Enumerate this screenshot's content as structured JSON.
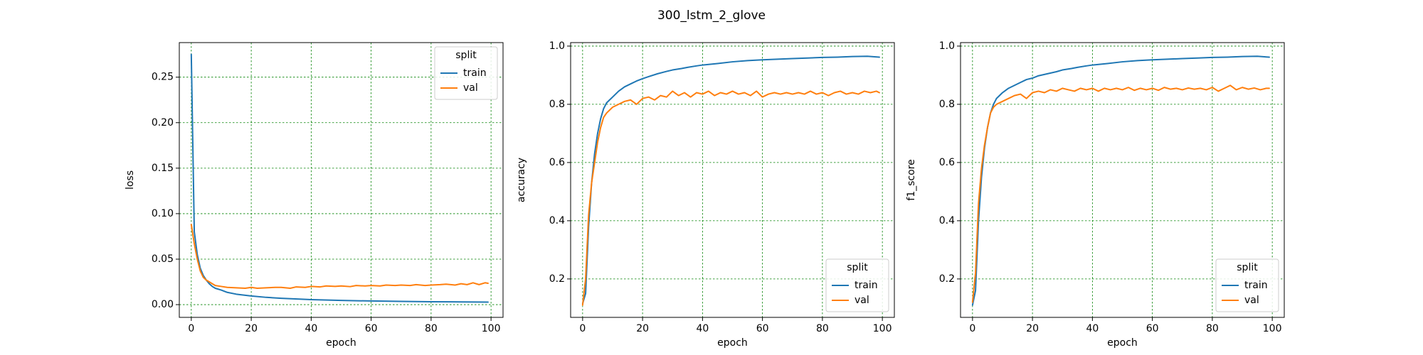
{
  "figure": {
    "title": "300_lstm_2_glove"
  },
  "colors": {
    "train": "#1f77b4",
    "val": "#ff7f0e",
    "grid": "#008000"
  },
  "chart_data": [
    {
      "type": "line",
      "xlabel": "epoch",
      "ylabel": "loss",
      "xlim": [
        -4,
        104
      ],
      "ylim": [
        -0.014,
        0.288
      ],
      "xticks": [
        0,
        20,
        40,
        60,
        80,
        100
      ],
      "yticks": [
        0.0,
        0.05,
        0.1,
        0.15,
        0.2,
        0.25
      ],
      "ytick_labels": [
        "0.00",
        "0.05",
        "0.10",
        "0.15",
        "0.20",
        "0.25"
      ],
      "grid": true,
      "legend": {
        "title": "split",
        "placement": "top-right"
      },
      "series": [
        {
          "name": "train",
          "color": "#1f77b4",
          "points": [
            [
              0,
              0.275
            ],
            [
              1,
              0.08
            ],
            [
              2,
              0.055
            ],
            [
              3,
              0.04
            ],
            [
              4,
              0.032
            ],
            [
              5,
              0.027
            ],
            [
              6,
              0.023
            ],
            [
              7,
              0.02
            ],
            [
              8,
              0.018
            ],
            [
              10,
              0.016
            ],
            [
              12,
              0.0135
            ],
            [
              15,
              0.0115
            ],
            [
              20,
              0.0095
            ],
            [
              25,
              0.008
            ],
            [
              30,
              0.007
            ],
            [
              40,
              0.0055
            ],
            [
              50,
              0.0046
            ],
            [
              60,
              0.004
            ],
            [
              70,
              0.0036
            ],
            [
              80,
              0.0032
            ],
            [
              90,
              0.003
            ],
            [
              99,
              0.0028
            ]
          ]
        },
        {
          "name": "val",
          "color": "#ff7f0e",
          "points": [
            [
              0,
              0.088
            ],
            [
              1,
              0.067
            ],
            [
              2,
              0.05
            ],
            [
              3,
              0.037
            ],
            [
              4,
              0.03
            ],
            [
              5,
              0.027
            ],
            [
              6,
              0.025
            ],
            [
              7,
              0.023
            ],
            [
              8,
              0.021
            ],
            [
              10,
              0.02
            ],
            [
              12,
              0.019
            ],
            [
              15,
              0.0185
            ],
            [
              18,
              0.018
            ],
            [
              20,
              0.019
            ],
            [
              22,
              0.018
            ],
            [
              25,
              0.0185
            ],
            [
              28,
              0.019
            ],
            [
              30,
              0.019
            ],
            [
              33,
              0.018
            ],
            [
              35,
              0.0195
            ],
            [
              38,
              0.019
            ],
            [
              40,
              0.02
            ],
            [
              43,
              0.0195
            ],
            [
              45,
              0.0205
            ],
            [
              48,
              0.02
            ],
            [
              50,
              0.0205
            ],
            [
              53,
              0.0198
            ],
            [
              55,
              0.021
            ],
            [
              58,
              0.0205
            ],
            [
              60,
              0.021
            ],
            [
              63,
              0.0205
            ],
            [
              65,
              0.0215
            ],
            [
              68,
              0.021
            ],
            [
              70,
              0.0215
            ],
            [
              73,
              0.021
            ],
            [
              75,
              0.022
            ],
            [
              78,
              0.021
            ],
            [
              80,
              0.0215
            ],
            [
              83,
              0.022
            ],
            [
              85,
              0.0225
            ],
            [
              88,
              0.0215
            ],
            [
              90,
              0.023
            ],
            [
              92,
              0.022
            ],
            [
              94,
              0.024
            ],
            [
              96,
              0.022
            ],
            [
              98,
              0.024
            ],
            [
              99,
              0.0235
            ]
          ]
        }
      ]
    },
    {
      "type": "line",
      "xlabel": "epoch",
      "ylabel": "accuracy",
      "xlim": [
        -4,
        104
      ],
      "ylim": [
        0.068,
        1.012
      ],
      "xticks": [
        0,
        20,
        40,
        60,
        80,
        100
      ],
      "yticks": [
        0.2,
        0.4,
        0.6,
        0.8,
        1.0
      ],
      "ytick_labels": [
        "0.2",
        "0.4",
        "0.6",
        "0.8",
        "1.0"
      ],
      "grid": true,
      "legend": {
        "title": "split",
        "placement": "bottom-right"
      },
      "series": [
        {
          "name": "train",
          "color": "#1f77b4",
          "points": [
            [
              0,
              0.115
            ],
            [
              1,
              0.15
            ],
            [
              2,
              0.38
            ],
            [
              3,
              0.53
            ],
            [
              4,
              0.63
            ],
            [
              5,
              0.7
            ],
            [
              6,
              0.75
            ],
            [
              7,
              0.785
            ],
            [
              8,
              0.805
            ],
            [
              9,
              0.815
            ],
            [
              10,
              0.825
            ],
            [
              12,
              0.845
            ],
            [
              14,
              0.86
            ],
            [
              16,
              0.87
            ],
            [
              18,
              0.88
            ],
            [
              20,
              0.888
            ],
            [
              22,
              0.895
            ],
            [
              25,
              0.905
            ],
            [
              28,
              0.913
            ],
            [
              30,
              0.918
            ],
            [
              33,
              0.923
            ],
            [
              35,
              0.927
            ],
            [
              38,
              0.932
            ],
            [
              40,
              0.935
            ],
            [
              45,
              0.94
            ],
            [
              50,
              0.946
            ],
            [
              55,
              0.95
            ],
            [
              60,
              0.953
            ],
            [
              65,
              0.955
            ],
            [
              70,
              0.957
            ],
            [
              75,
              0.959
            ],
            [
              80,
              0.961
            ],
            [
              85,
              0.962
            ],
            [
              90,
              0.964
            ],
            [
              95,
              0.965
            ],
            [
              99,
              0.962
            ]
          ]
        },
        {
          "name": "val",
          "color": "#ff7f0e",
          "points": [
            [
              0,
              0.11
            ],
            [
              1,
              0.2
            ],
            [
              2,
              0.42
            ],
            [
              3,
              0.53
            ],
            [
              4,
              0.6
            ],
            [
              5,
              0.67
            ],
            [
              6,
              0.72
            ],
            [
              7,
              0.755
            ],
            [
              8,
              0.77
            ],
            [
              10,
              0.79
            ],
            [
              12,
              0.8
            ],
            [
              14,
              0.81
            ],
            [
              16,
              0.815
            ],
            [
              18,
              0.8
            ],
            [
              20,
              0.82
            ],
            [
              22,
              0.825
            ],
            [
              24,
              0.815
            ],
            [
              26,
              0.83
            ],
            [
              28,
              0.825
            ],
            [
              30,
              0.845
            ],
            [
              32,
              0.83
            ],
            [
              34,
              0.84
            ],
            [
              36,
              0.825
            ],
            [
              38,
              0.84
            ],
            [
              40,
              0.835
            ],
            [
              42,
              0.845
            ],
            [
              44,
              0.83
            ],
            [
              46,
              0.84
            ],
            [
              48,
              0.835
            ],
            [
              50,
              0.845
            ],
            [
              52,
              0.835
            ],
            [
              54,
              0.84
            ],
            [
              56,
              0.83
            ],
            [
              58,
              0.845
            ],
            [
              60,
              0.825
            ],
            [
              62,
              0.835
            ],
            [
              64,
              0.84
            ],
            [
              66,
              0.835
            ],
            [
              68,
              0.84
            ],
            [
              70,
              0.835
            ],
            [
              72,
              0.84
            ],
            [
              74,
              0.835
            ],
            [
              76,
              0.845
            ],
            [
              78,
              0.835
            ],
            [
              80,
              0.84
            ],
            [
              82,
              0.83
            ],
            [
              84,
              0.84
            ],
            [
              86,
              0.845
            ],
            [
              88,
              0.835
            ],
            [
              90,
              0.84
            ],
            [
              92,
              0.835
            ],
            [
              94,
              0.845
            ],
            [
              96,
              0.84
            ],
            [
              98,
              0.845
            ],
            [
              99,
              0.84
            ]
          ]
        }
      ]
    },
    {
      "type": "line",
      "xlabel": "epoch",
      "ylabel": "f1_score",
      "xlim": [
        -4,
        104
      ],
      "ylim": [
        0.068,
        1.012
      ],
      "xticks": [
        0,
        20,
        40,
        60,
        80,
        100
      ],
      "yticks": [
        0.2,
        0.4,
        0.6,
        0.8,
        1.0
      ],
      "ytick_labels": [
        "0.2",
        "0.4",
        "0.6",
        "0.8",
        "1.0"
      ],
      "grid": true,
      "legend": {
        "title": "split",
        "placement": "bottom-right"
      },
      "series": [
        {
          "name": "train",
          "color": "#1f77b4",
          "points": [
            [
              0,
              0.11
            ],
            [
              1,
              0.16
            ],
            [
              2,
              0.4
            ],
            [
              3,
              0.55
            ],
            [
              4,
              0.65
            ],
            [
              5,
              0.72
            ],
            [
              6,
              0.77
            ],
            [
              7,
              0.8
            ],
            [
              8,
              0.82
            ],
            [
              9,
              0.83
            ],
            [
              10,
              0.84
            ],
            [
              12,
              0.855
            ],
            [
              14,
              0.865
            ],
            [
              16,
              0.875
            ],
            [
              18,
              0.885
            ],
            [
              20,
              0.89
            ],
            [
              22,
              0.898
            ],
            [
              25,
              0.905
            ],
            [
              28,
              0.912
            ],
            [
              30,
              0.918
            ],
            [
              33,
              0.923
            ],
            [
              35,
              0.927
            ],
            [
              38,
              0.932
            ],
            [
              40,
              0.935
            ],
            [
              45,
              0.94
            ],
            [
              50,
              0.946
            ],
            [
              55,
              0.95
            ],
            [
              60,
              0.953
            ],
            [
              65,
              0.955
            ],
            [
              70,
              0.957
            ],
            [
              75,
              0.959
            ],
            [
              80,
              0.961
            ],
            [
              85,
              0.962
            ],
            [
              90,
              0.964
            ],
            [
              95,
              0.965
            ],
            [
              99,
              0.962
            ]
          ]
        },
        {
          "name": "val",
          "color": "#ff7f0e",
          "points": [
            [
              0,
              0.12
            ],
            [
              1,
              0.22
            ],
            [
              2,
              0.46
            ],
            [
              3,
              0.58
            ],
            [
              4,
              0.66
            ],
            [
              5,
              0.72
            ],
            [
              6,
              0.77
            ],
            [
              7,
              0.79
            ],
            [
              8,
              0.8
            ],
            [
              10,
              0.81
            ],
            [
              12,
              0.82
            ],
            [
              14,
              0.83
            ],
            [
              16,
              0.835
            ],
            [
              18,
              0.82
            ],
            [
              20,
              0.84
            ],
            [
              22,
              0.845
            ],
            [
              24,
              0.84
            ],
            [
              26,
              0.85
            ],
            [
              28,
              0.845
            ],
            [
              30,
              0.855
            ],
            [
              32,
              0.85
            ],
            [
              34,
              0.845
            ],
            [
              36,
              0.855
            ],
            [
              38,
              0.85
            ],
            [
              40,
              0.855
            ],
            [
              42,
              0.845
            ],
            [
              44,
              0.855
            ],
            [
              46,
              0.85
            ],
            [
              48,
              0.855
            ],
            [
              50,
              0.85
            ],
            [
              52,
              0.858
            ],
            [
              54,
              0.848
            ],
            [
              56,
              0.855
            ],
            [
              58,
              0.85
            ],
            [
              60,
              0.855
            ],
            [
              62,
              0.848
            ],
            [
              64,
              0.858
            ],
            [
              66,
              0.852
            ],
            [
              68,
              0.855
            ],
            [
              70,
              0.85
            ],
            [
              72,
              0.856
            ],
            [
              74,
              0.852
            ],
            [
              76,
              0.855
            ],
            [
              78,
              0.85
            ],
            [
              80,
              0.858
            ],
            [
              82,
              0.845
            ],
            [
              84,
              0.855
            ],
            [
              86,
              0.865
            ],
            [
              88,
              0.85
            ],
            [
              90,
              0.858
            ],
            [
              92,
              0.852
            ],
            [
              94,
              0.856
            ],
            [
              96,
              0.85
            ],
            [
              98,
              0.855
            ],
            [
              99,
              0.855
            ]
          ]
        }
      ]
    }
  ]
}
